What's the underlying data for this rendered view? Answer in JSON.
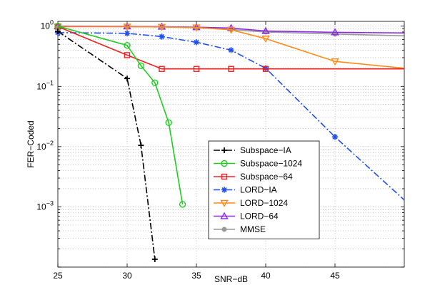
{
  "chart_data": {
    "type": "line",
    "title": "",
    "xlabel": "SNR−dB",
    "ylabel": "FER−Coded",
    "xscale": "linear",
    "yscale": "log",
    "xlim": [
      25,
      50
    ],
    "ylim": [
      0.0001,
      1.2
    ],
    "grid": true,
    "legend_position": "center-right",
    "x_ticks": [
      {
        "value": 25,
        "label": "25"
      },
      {
        "value": 30,
        "label": "30"
      },
      {
        "value": 35,
        "label": "35"
      },
      {
        "value": 40,
        "label": "40"
      },
      {
        "value": 45,
        "label": "45"
      }
    ],
    "y_ticks": [
      {
        "value": 1,
        "base": "10",
        "exp": "0"
      },
      {
        "value": 0.1,
        "base": "10",
        "exp": "−1"
      },
      {
        "value": 0.01,
        "base": "10",
        "exp": "−2"
      },
      {
        "value": 0.001,
        "base": "10",
        "exp": "−3"
      }
    ],
    "series": [
      {
        "name": "Subspace−IA",
        "color": "#000000",
        "dash": "9,3,2,3",
        "marker": "plus",
        "x": [
          25,
          30,
          31,
          32
        ],
        "y": [
          0.82,
          0.135,
          0.0105,
          0.000135
        ]
      },
      {
        "name": "Subspace−1024",
        "color": "#22cc22",
        "dash": "",
        "marker": "circle",
        "x": [
          25,
          30,
          31,
          32,
          33,
          34
        ],
        "y": [
          1.0,
          0.48,
          0.22,
          0.115,
          0.025,
          0.0011
        ]
      },
      {
        "name": "Subspace−64",
        "color": "#ee2222",
        "dash": "",
        "marker": "square",
        "x": [
          25,
          30,
          32.5,
          35,
          37.5,
          40,
          50
        ],
        "y": [
          0.98,
          0.33,
          0.195,
          0.195,
          0.195,
          0.195,
          0.195
        ]
      },
      {
        "name": "LORD−IA",
        "color": "#1f4fee",
        "dash": "9,3,2,3",
        "marker": "star",
        "x": [
          25,
          30,
          32.5,
          35,
          37.5,
          40,
          45,
          50
        ],
        "y": [
          0.78,
          0.76,
          0.67,
          0.54,
          0.4,
          0.2,
          0.0145,
          0.0013
        ]
      },
      {
        "name": "LORD−1024",
        "color": "#ff8c1a",
        "dash": "",
        "marker": "triangle-down",
        "x": [
          25,
          30,
          32.5,
          35,
          37.5,
          40,
          45,
          50
        ],
        "y": [
          0.98,
          0.98,
          0.97,
          0.95,
          0.87,
          0.62,
          0.26,
          0.2
        ]
      },
      {
        "name": "LORD−64",
        "color": "#8a2be2",
        "dash": "",
        "marker": "triangle-up",
        "x": [
          25,
          30,
          32.5,
          35,
          37.5,
          40,
          45,
          50
        ],
        "y": [
          1.0,
          0.99,
          0.98,
          0.96,
          0.93,
          0.83,
          0.79,
          0.77
        ]
      },
      {
        "name": "MMSE",
        "color": "#999999",
        "dash": "",
        "marker": "dot",
        "x": [
          25,
          30,
          32.5,
          35,
          37.5,
          40,
          45,
          50
        ],
        "y": [
          0.99,
          0.98,
          0.97,
          0.94,
          0.88,
          0.8,
          0.74,
          0.69
        ]
      }
    ]
  }
}
